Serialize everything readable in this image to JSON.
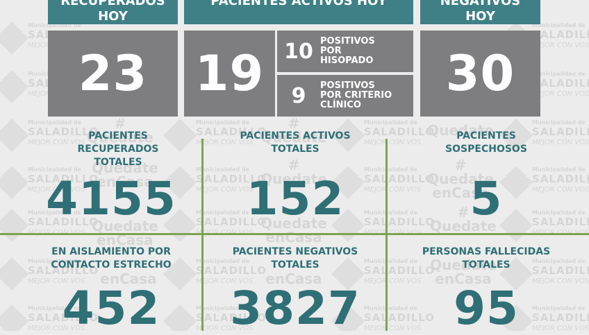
{
  "watermark": {
    "line1": "Municipalidad de",
    "line2": "SALADILLO",
    "line3": "MEJOR CON VOS",
    "hash": "#",
    "tag1": "Quedate",
    "tag2": "enCasa"
  },
  "top": {
    "recuperados_hoy": {
      "label1": "RECUPERADOS",
      "label2": "HOY",
      "value": "23"
    },
    "activos_hoy": {
      "label": "PACIENTES ACTIVOS HOY",
      "value": "19",
      "hisopado": {
        "value": "10",
        "line1": "POSITIVOS",
        "line2": "POR",
        "line3": "HISOPADO"
      },
      "clinico": {
        "value": "9",
        "line1": "POSITIVOS",
        "line2": "POR CRITERIO",
        "line3": "CLÍNICO"
      }
    },
    "negativos_hoy": {
      "label1": "NEGATIVOS",
      "label2": "HOY",
      "value": "30"
    }
  },
  "stats": {
    "recuperados_totales": {
      "line1": "PACIENTES",
      "line2": "RECUPERADOS",
      "line3": "TOTALES",
      "value": "4155"
    },
    "activos_totales": {
      "line1": "PACIENTES ACTIVOS",
      "line2": "TOTALES",
      "value": "152"
    },
    "sospechosos": {
      "line1": "PACIENTES",
      "line2": "SOSPECHOSOS",
      "value": "5"
    },
    "aislamiento": {
      "line1": "EN AISLAMIENTO POR",
      "line2": "CONTACTO ESTRECHO",
      "value": "452"
    },
    "negativos_totales": {
      "line1": "PACIENTES NEGATIVOS",
      "line2": "TOTALES",
      "value": "3827"
    },
    "fallecidas": {
      "line1": "PERSONAS FALLECIDAS",
      "line2": "TOTALES",
      "value": "95"
    }
  },
  "colors": {
    "teal": "#3f8087",
    "gray_box": "#7e7e80",
    "text_teal": "#2f6f76",
    "grid_green": "#7ea24f",
    "background": "#ececec"
  }
}
